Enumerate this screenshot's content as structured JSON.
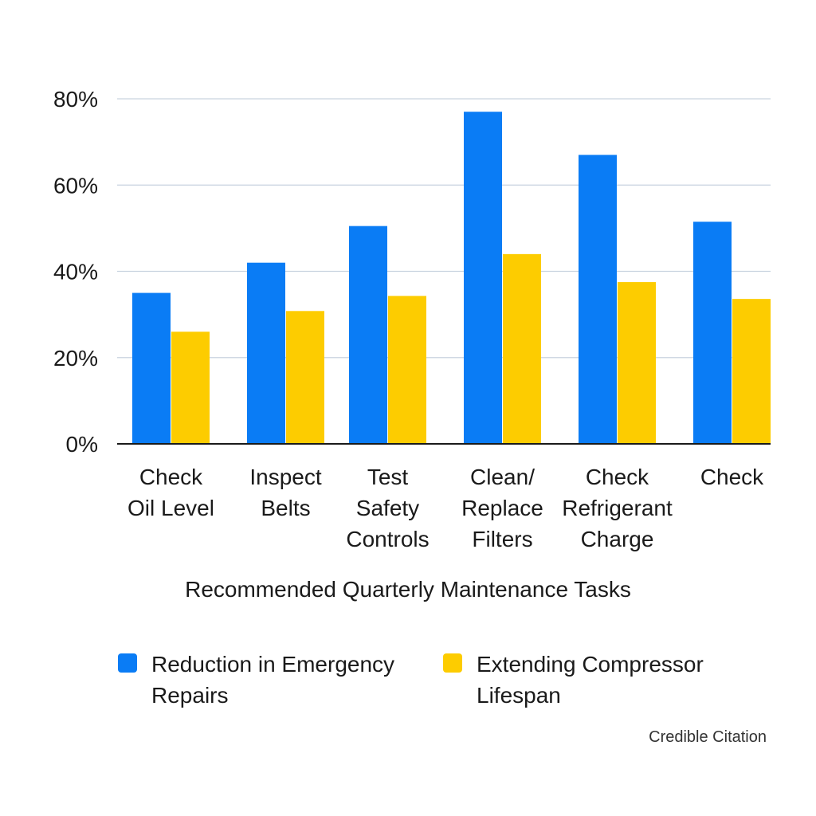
{
  "chart_data": {
    "type": "bar",
    "title": "",
    "xlabel": "Recommended Quarterly Maintenance Tasks",
    "ylabel": "",
    "ylim": [
      0,
      80
    ],
    "yticks": [
      0,
      20,
      40,
      60,
      80
    ],
    "ytick_format": "percent",
    "grid": true,
    "legend_position": "bottom",
    "categories": [
      [
        "Check",
        "Oil Level"
      ],
      [
        "Inspect",
        "Belts"
      ],
      [
        "Test",
        "Safety",
        "Controls"
      ],
      [
        "Clean/",
        "Replace",
        "Filters"
      ],
      [
        "Check",
        "Refrigerant",
        "Charge"
      ],
      [
        "Check"
      ]
    ],
    "series": [
      {
        "name": "Reduction in Emergency Repairs",
        "color": "#0a7cf5",
        "values": [
          35,
          42,
          50.5,
          77,
          67,
          51.5
        ]
      },
      {
        "name": "Extending Compressor Lifespan",
        "color": "#fdcc00",
        "values": [
          26,
          30.8,
          34.3,
          44,
          37.5,
          33.6
        ]
      }
    ]
  },
  "legend": {
    "items": [
      {
        "label": "Reduction in Emergency Repairs",
        "color": "#0a7cf5"
      },
      {
        "label": "Extending Compressor Lifespan",
        "color": "#fdcc00"
      }
    ]
  },
  "citation": "Credible Citation"
}
